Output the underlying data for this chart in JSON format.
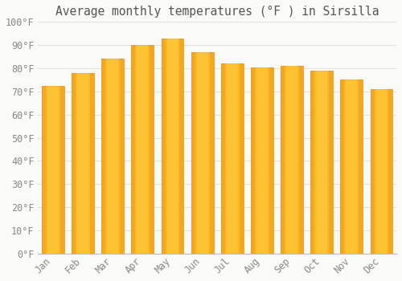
{
  "title": "Average monthly temperatures (°F ) in Sirsilla",
  "months": [
    "Jan",
    "Feb",
    "Mar",
    "Apr",
    "May",
    "Jun",
    "Jul",
    "Aug",
    "Sep",
    "Oct",
    "Nov",
    "Dec"
  ],
  "values": [
    72.5,
    78,
    84,
    90,
    93,
    87,
    82,
    80.5,
    81,
    79,
    75,
    71
  ],
  "bar_color_light": "#FFCC44",
  "bar_color_main": "#FDB827",
  "bar_color_dark": "#E89010",
  "background_color": "#FAFAF8",
  "plot_bg_color": "#FAFAF8",
  "grid_color": "#E0E0E0",
  "ylabel_ticks": [
    "0°F",
    "10°F",
    "20°F",
    "30°F",
    "40°F",
    "50°F",
    "60°F",
    "70°F",
    "80°F",
    "90°F",
    "100°F"
  ],
  "ytick_values": [
    0,
    10,
    20,
    30,
    40,
    50,
    60,
    70,
    80,
    90,
    100
  ],
  "ylim": [
    0,
    100
  ],
  "title_fontsize": 10.5,
  "tick_fontsize": 8.5,
  "font_color": "#888888",
  "title_color": "#555555"
}
